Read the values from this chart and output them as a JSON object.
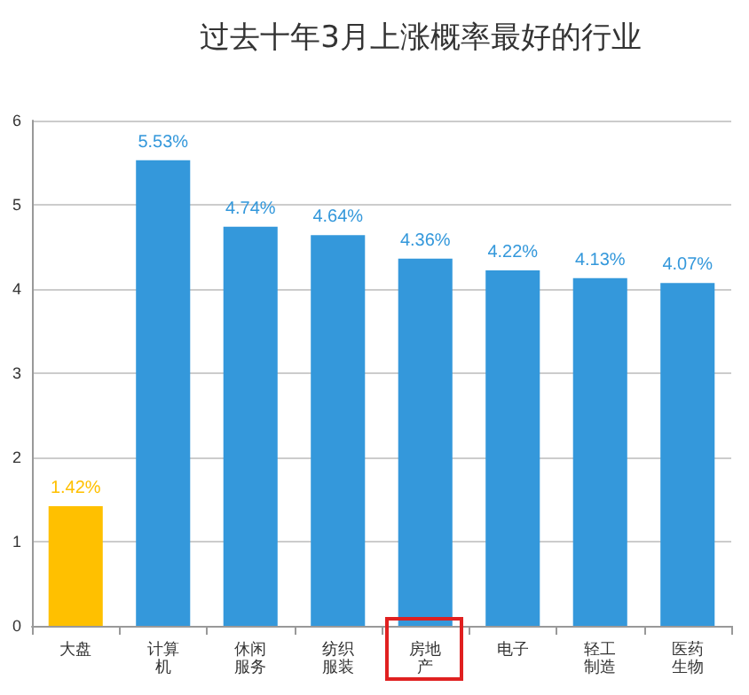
{
  "chart_data": {
    "type": "bar",
    "title": "过去十年3月上涨概率最好的行业",
    "categories": [
      "大盘",
      "计算机",
      "休闲服务",
      "纺织服装",
      "房地产",
      "电子",
      "轻工制造",
      "医药生物"
    ],
    "values": [
      1.42,
      5.53,
      4.74,
      4.64,
      4.36,
      4.22,
      4.13,
      4.07
    ],
    "colors": [
      "#ffc000",
      "#3498db",
      "#3498db",
      "#3498db",
      "#3498db",
      "#3498db",
      "#3498db",
      "#3498db"
    ],
    "value_labels": [
      "1.42%",
      "5.53%",
      "4.74%",
      "4.64%",
      "4.36%",
      "4.22%",
      "4.13%",
      "4.07%"
    ],
    "ylim": [
      0,
      6
    ],
    "yticks": [
      0,
      1,
      2,
      3,
      4,
      5,
      6
    ],
    "grid": "y"
  }
}
